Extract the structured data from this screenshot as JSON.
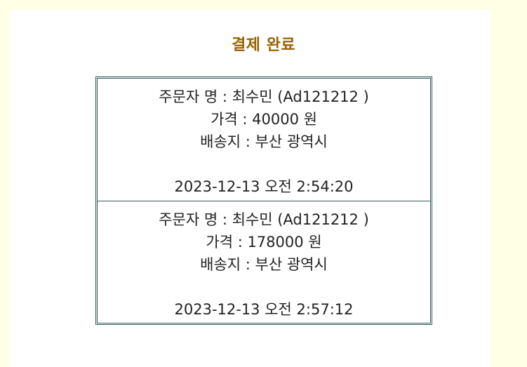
{
  "page": {
    "title": "결제 완료"
  },
  "orders": [
    {
      "orderer_label": "주문자 명 : 최수민 (Ad121212 )",
      "price_label": "가격 : 40000 원",
      "address_label": "배송지 : 부산 광역시",
      "timestamp": "2023-12-13 오전 2:54:20"
    },
    {
      "orderer_label": "주문자 명 : 최수민 (Ad121212 )",
      "price_label": "가격 : 178000 원",
      "address_label": "배송지 : 부산 광역시",
      "timestamp": "2023-12-13 오전 2:57:12"
    }
  ],
  "colors": {
    "page_background": "#ffffe6",
    "panel_background": "#ffffff",
    "title": "#9a6200",
    "border": "#2f5a57"
  }
}
